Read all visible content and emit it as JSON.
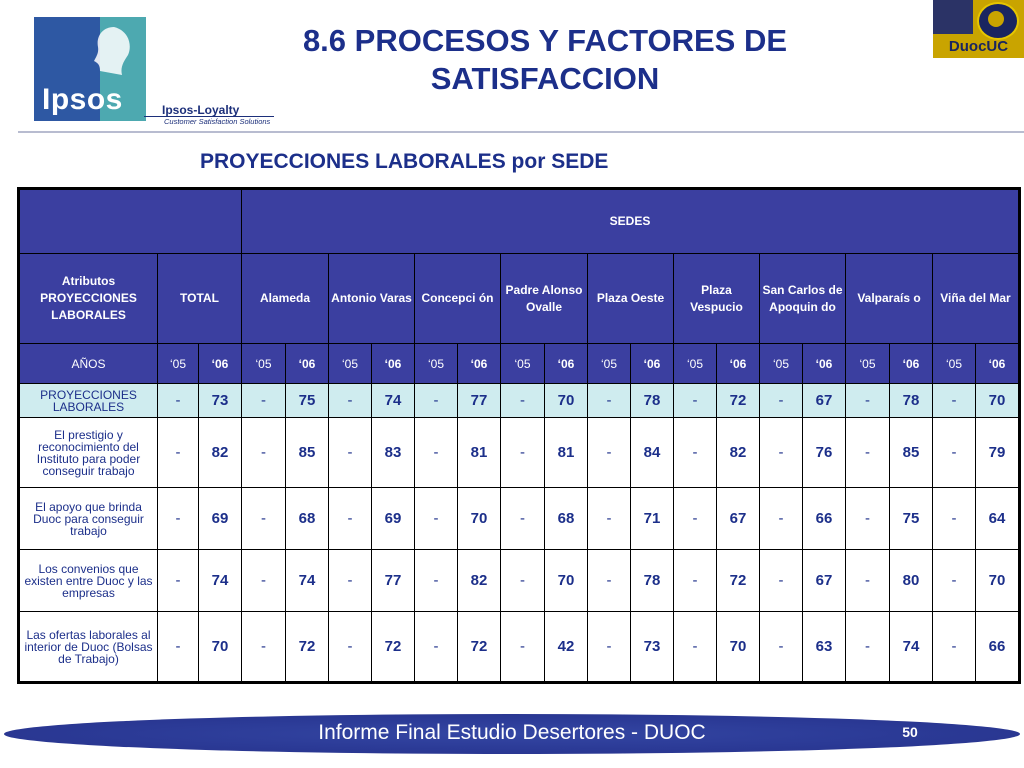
{
  "logos": {
    "ipsos_text": "Ipsos",
    "loyalty_text": "Ipsos-Loyalty",
    "loyalty_tagline": "Customer Satisfaction Solutions",
    "duoc_text": "DuocUC"
  },
  "title_line1": "8.6 PROCESOS Y FACTORES DE",
  "title_line2": "SATISFACCION",
  "subtitle": "PROYECCIONES LABORALES por SEDE",
  "table": {
    "sedes_header": "SEDES",
    "attr_header": "Atributos PROYECCIONES LABORALES",
    "total_header": "TOTAL",
    "sites": [
      "Alameda",
      "Antonio Varas",
      "Concepci ón",
      "Padre Alonso Ovalle",
      "Plaza Oeste",
      "Plaza Vespucio",
      "San Carlos de Apoquin do",
      "Valparaís o",
      "Viña del Mar"
    ],
    "years_label": "AÑOS",
    "year_05": "‘05",
    "year_06": "‘06",
    "rows": [
      {
        "label": "PROYECCIONES LABORALES",
        "cells": [
          "-",
          "73",
          "-",
          "75",
          "-",
          "74",
          "-",
          "77",
          "-",
          "70",
          "-",
          "78",
          "-",
          "72",
          "-",
          "67",
          "-",
          "78",
          "-",
          "70"
        ]
      },
      {
        "label": "El prestigio y reconocimiento del Instituto para poder conseguir trabajo",
        "cells": [
          "-",
          "82",
          "-",
          "85",
          "-",
          "83",
          "-",
          "81",
          "-",
          "81",
          "-",
          "84",
          "-",
          "82",
          "-",
          "76",
          "-",
          "85",
          "-",
          "79"
        ]
      },
      {
        "label": "El apoyo que brinda Duoc para conseguir trabajo",
        "cells": [
          "-",
          "69",
          "-",
          "68",
          "-",
          "69",
          "-",
          "70",
          "-",
          "68",
          "-",
          "71",
          "-",
          "67",
          "-",
          "66",
          "-",
          "75",
          "-",
          "64"
        ]
      },
      {
        "label": "Los convenios que existen entre Duoc y las empresas",
        "cells": [
          "-",
          "74",
          "-",
          "74",
          "-",
          "77",
          "-",
          "82",
          "-",
          "70",
          "-",
          "78",
          "-",
          "72",
          "-",
          "67",
          "-",
          "80",
          "-",
          "70"
        ]
      },
      {
        "label": "Las ofertas laborales al interior de Duoc (Bolsas de Trabajo)",
        "cells": [
          "-",
          "70",
          "-",
          "72",
          "-",
          "72",
          "-",
          "72",
          "-",
          "42",
          "-",
          "73",
          "-",
          "70",
          "-",
          "63",
          "-",
          "74",
          "-",
          "66"
        ]
      }
    ]
  },
  "footer": {
    "text": "Informe Final Estudio Desertores - DUOC",
    "page": "50"
  }
}
